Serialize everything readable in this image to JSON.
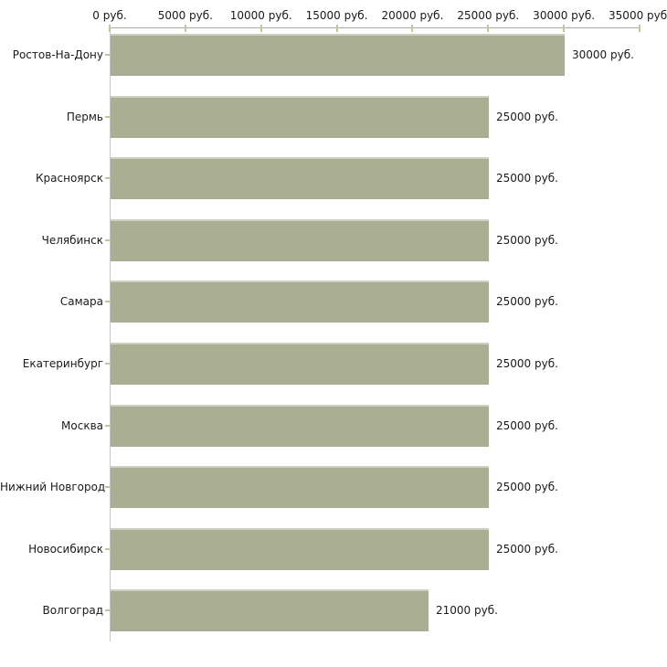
{
  "chart_data": {
    "type": "bar",
    "orientation": "horizontal",
    "title": "",
    "xlabel": "",
    "ylabel": "",
    "unit": "руб.",
    "xlim": [
      0,
      35000
    ],
    "grid": false,
    "legend": null,
    "categories": [
      "Ростов-На-Дону",
      "Пермь",
      "Красноярск",
      "Челябинск",
      "Самара",
      "Екатеринбург",
      "Москва",
      "Нижний Новгород",
      "Новосибирск",
      "Волгоград"
    ],
    "values": [
      30000,
      25000,
      25000,
      25000,
      25000,
      25000,
      25000,
      25000,
      25000,
      21000
    ],
    "value_labels": [
      "30000 руб.",
      "25000 руб.",
      "25000 руб.",
      "25000 руб.",
      "25000 руб.",
      "25000 руб.",
      "25000 руб.",
      "25000 руб.",
      "25000 руб.",
      "21000 руб."
    ],
    "x_ticks": [
      {
        "value": 0,
        "label": "0 руб."
      },
      {
        "value": 5000,
        "label": "5000 руб."
      },
      {
        "value": 10000,
        "label": "10000 руб."
      },
      {
        "value": 15000,
        "label": "15000 руб."
      },
      {
        "value": 20000,
        "label": "20000 руб."
      },
      {
        "value": 25000,
        "label": "25000 руб."
      },
      {
        "value": 30000,
        "label": "30000 руб."
      },
      {
        "value": 35000,
        "label": "35000 руб."
      }
    ],
    "colors": {
      "bar": "#aaaf94",
      "bar_top_edge": "#cdd0c0",
      "x_axis_line": "#a9a9a9",
      "y_axis_line": "#c6c6c6",
      "tick": "#c2c49e",
      "text": "#1a1a1a",
      "background": "#ffffff"
    }
  }
}
